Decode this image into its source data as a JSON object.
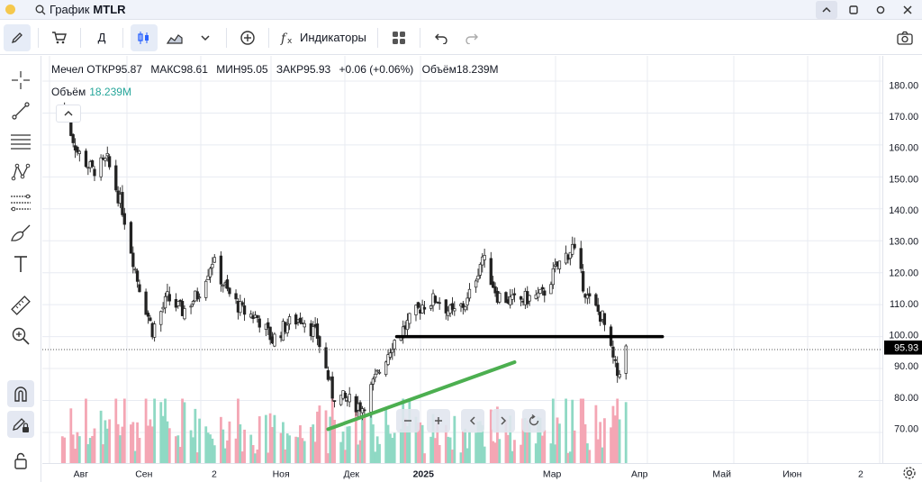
{
  "titlebar": {
    "label": "График",
    "symbol": "MTLR"
  },
  "toolbar": {
    "timeframe": "Д",
    "indicators_label": "Индикаторы"
  },
  "legend": {
    "name": "Мечел",
    "items": [
      {
        "label": "ОТКР",
        "value": "95.87"
      },
      {
        "label": "МАКС",
        "value": "98.61"
      },
      {
        "label": "МИН",
        "value": "95.05"
      },
      {
        "label": "ЗАКР",
        "value": "95.93"
      }
    ],
    "change": "+0.06 (+0.06%)",
    "volume_label": "Объём",
    "volume_value": "18.239M"
  },
  "volume_legend": {
    "label": "Объём",
    "value": "18.239M"
  },
  "colors": {
    "up": "#26a69a",
    "down": "#ef5350",
    "candle_up": "#1e1e1e",
    "candle_down": "#1e1e1e",
    "vol_up": "#8fd9c4",
    "vol_down": "#f4a6b4",
    "trendline": "#4caf50",
    "level": "#000000",
    "current_price_bg": "#000000"
  },
  "chart_data": {
    "type": "candlestick",
    "symbol": "MTLR",
    "y_range": [
      62,
      185
    ],
    "price_ticks": [
      "180.00",
      "170.00",
      "160.00",
      "150.00",
      "140.00",
      "130.00",
      "120.00",
      "110.00",
      "100.00",
      "90.00",
      "80.00",
      "70.00"
    ],
    "current_price": "95.93",
    "time_ticks": [
      "Авг",
      "Сен",
      "2",
      "Ноя",
      "Дек",
      "2025",
      "Мар",
      "Апр",
      "Май",
      "Июн",
      "2"
    ],
    "grid": true,
    "close_path": [
      {
        "d": "2024-08-01",
        "c": 172
      },
      {
        "d": "2024-08-08",
        "c": 158
      },
      {
        "d": "2024-08-15",
        "c": 152
      },
      {
        "d": "2024-08-22",
        "c": 155
      },
      {
        "d": "2024-08-29",
        "c": 140
      },
      {
        "d": "2024-09-05",
        "c": 118
      },
      {
        "d": "2024-09-12",
        "c": 102
      },
      {
        "d": "2024-09-19",
        "c": 112
      },
      {
        "d": "2024-09-26",
        "c": 108
      },
      {
        "d": "2024-10-03",
        "c": 113
      },
      {
        "d": "2024-10-10",
        "c": 124
      },
      {
        "d": "2024-10-17",
        "c": 114
      },
      {
        "d": "2024-10-24",
        "c": 108
      },
      {
        "d": "2024-10-31",
        "c": 106
      },
      {
        "d": "2024-11-07",
        "c": 99
      },
      {
        "d": "2024-11-14",
        "c": 104
      },
      {
        "d": "2024-11-21",
        "c": 106
      },
      {
        "d": "2024-11-28",
        "c": 100
      },
      {
        "d": "2024-12-05",
        "c": 82
      },
      {
        "d": "2024-12-12",
        "c": 80
      },
      {
        "d": "2024-12-19",
        "c": 78
      },
      {
        "d": "2024-12-26",
        "c": 88
      },
      {
        "d": "2025-01-02",
        "c": 98
      },
      {
        "d": "2025-01-09",
        "c": 104
      },
      {
        "d": "2025-01-16",
        "c": 110
      },
      {
        "d": "2025-01-23",
        "c": 112
      },
      {
        "d": "2025-01-30",
        "c": 107
      },
      {
        "d": "2025-02-06",
        "c": 111
      },
      {
        "d": "2025-02-13",
        "c": 125
      },
      {
        "d": "2025-02-20",
        "c": 113
      },
      {
        "d": "2025-02-27",
        "c": 111
      },
      {
        "d": "2025-03-06",
        "c": 112
      },
      {
        "d": "2025-03-13",
        "c": 113
      },
      {
        "d": "2025-03-20",
        "c": 122
      },
      {
        "d": "2025-03-27",
        "c": 128
      },
      {
        "d": "2025-04-03",
        "c": 112
      },
      {
        "d": "2025-04-10",
        "c": 106
      },
      {
        "d": "2025-04-14",
        "c": 95
      },
      {
        "d": "2025-04-17",
        "c": 88
      },
      {
        "d": "2025-04-21",
        "c": 96
      }
    ],
    "annotations": [
      {
        "type": "trendline",
        "from": {
          "d": "2024-12-03",
          "p": 71
        },
        "to": {
          "d": "2025-02-28",
          "p": 92
        }
      },
      {
        "type": "horizontal",
        "from": {
          "d": "2025-01-04",
          "p": 100
        },
        "to": {
          "d": "2025-05-08",
          "p": 100
        }
      }
    ]
  }
}
